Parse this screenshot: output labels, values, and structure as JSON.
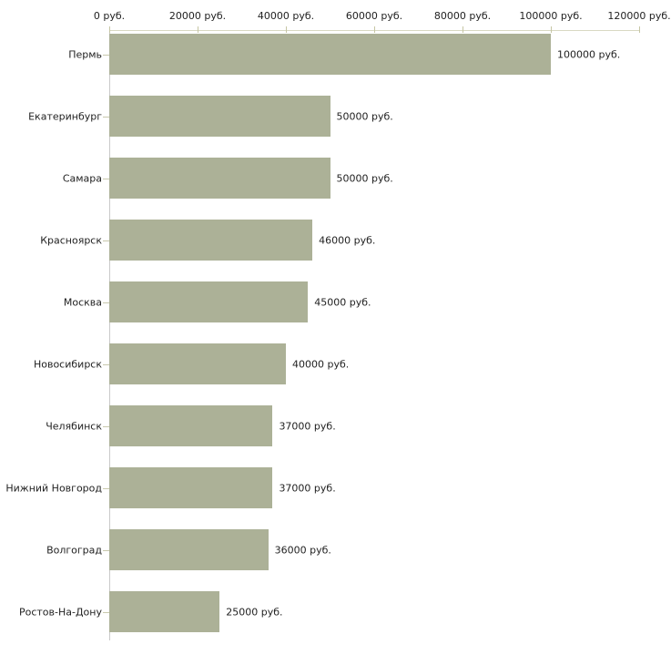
{
  "chart_data": {
    "type": "bar",
    "orientation": "horizontal",
    "title": "",
    "xlabel": "",
    "ylabel": "",
    "unit": "руб.",
    "categories": [
      "Пермь",
      "Екатеринбург",
      "Самара",
      "Красноярск",
      "Москва",
      "Новосибирск",
      "Челябинск",
      "Нижний Новгород",
      "Волгоград",
      "Ростов-На-Дону"
    ],
    "values": [
      100000,
      50000,
      50000,
      46000,
      45000,
      40000,
      37000,
      37000,
      36000,
      25000
    ],
    "value_labels": [
      "100000 руб.",
      "50000 руб.",
      "50000 руб.",
      "46000 руб.",
      "45000 руб.",
      "40000 руб.",
      "37000 руб.",
      "37000 руб.",
      "36000 руб.",
      "25000 руб."
    ],
    "x_axis": {
      "position": "top",
      "range": [
        0,
        120000
      ],
      "ticks": [
        0,
        20000,
        40000,
        60000,
        80000,
        100000,
        120000
      ],
      "tick_labels": [
        "0 руб.",
        "20000 руб.",
        "40000 руб.",
        "60000 руб.",
        "80000 руб.",
        "100000 руб.",
        "120000 руб."
      ]
    },
    "grid": false,
    "legend": false,
    "colors": {
      "bar": "#acb197",
      "x_axis_line": "#d9d9c3",
      "x_tick_mark": "#c6c6a4",
      "y_axis_line": "#c9c9c9",
      "row_tick_mark": "#c8c8ac",
      "text": "#222222"
    }
  }
}
